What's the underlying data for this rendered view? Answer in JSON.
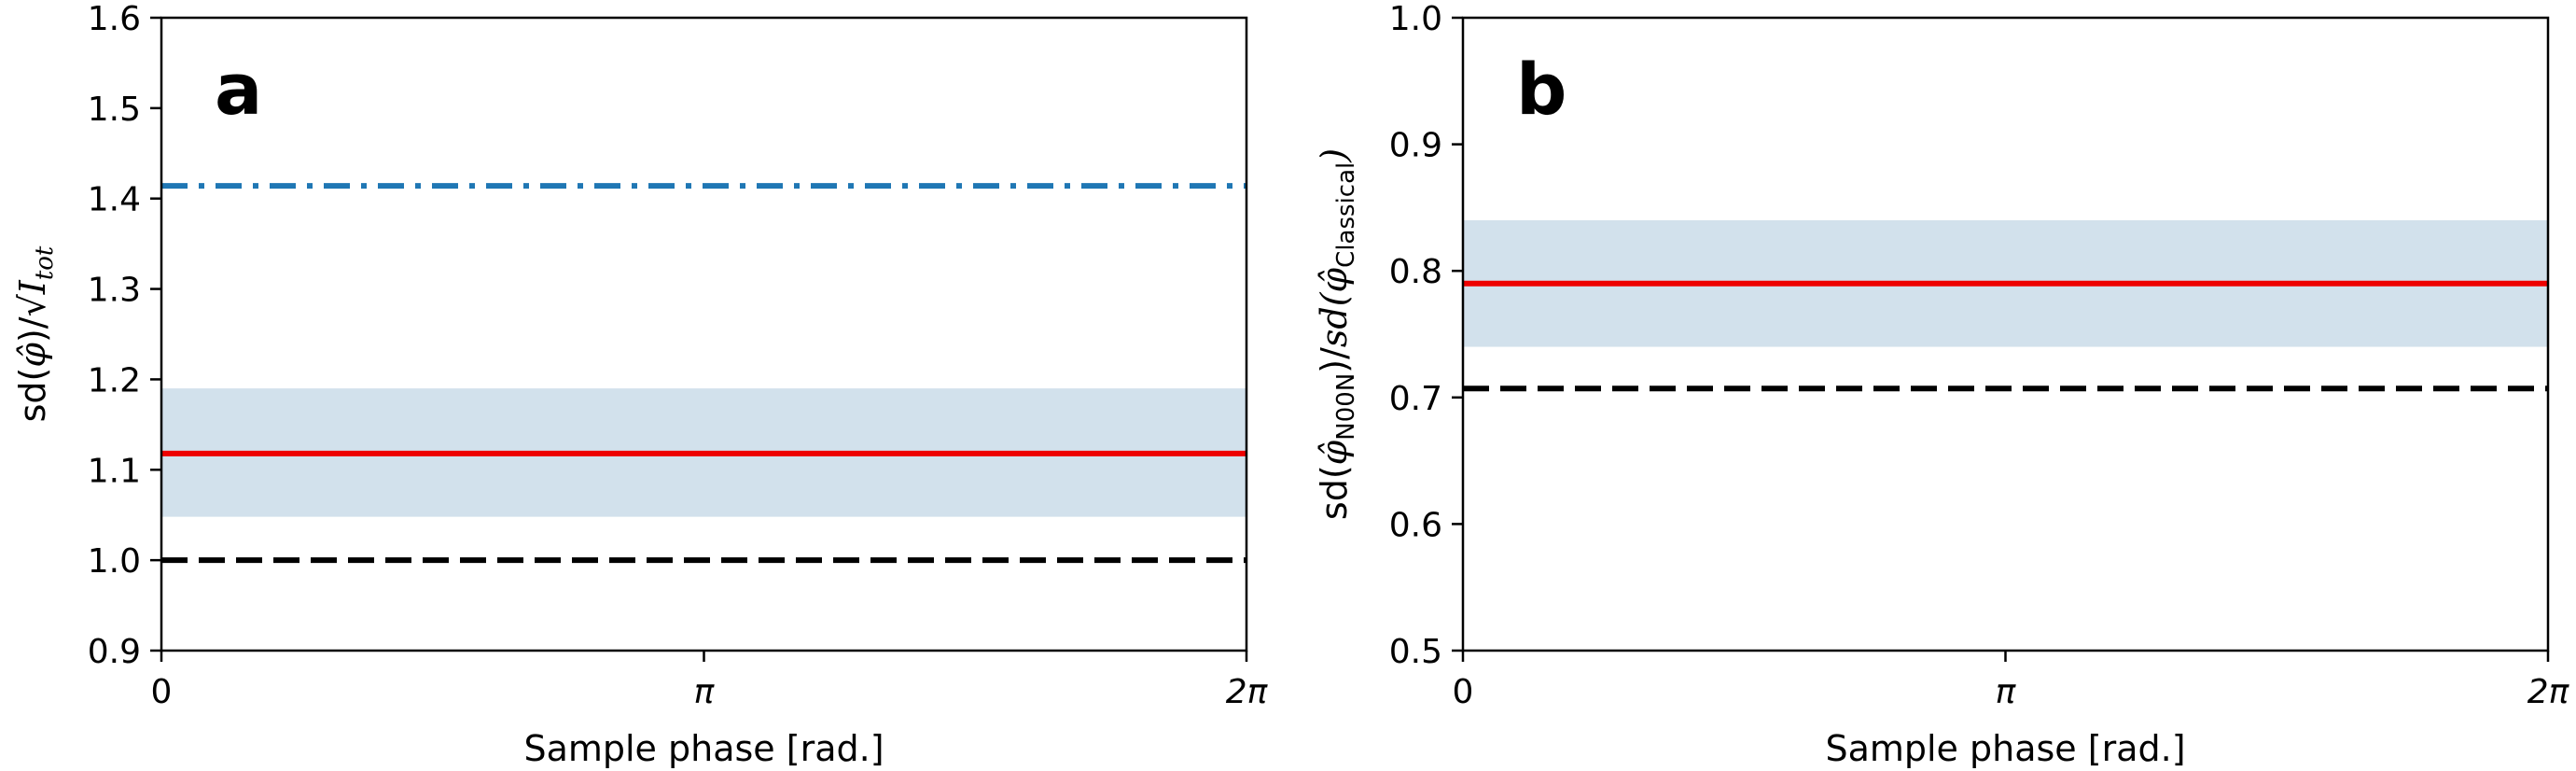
{
  "chart_data": [
    {
      "panel": "a",
      "type": "line",
      "xlabel": "Sample phase [rad.]",
      "ylabel": "sd(φ̂)/√I_tot",
      "ylabel_parts": {
        "pre": "sd(",
        "phi": "φ̂",
        "mid": ")/√",
        "I": "I",
        "sub": "tot"
      },
      "xlim": [
        0,
        6.2832
      ],
      "ylim": [
        0.9,
        1.6
      ],
      "x_tick_values": [
        0,
        3.1416,
        6.2832
      ],
      "x_tick_labels": [
        "0",
        "π",
        "2π"
      ],
      "y_ticks": [
        "0.9",
        "1.0",
        "1.1",
        "1.2",
        "1.3",
        "1.4",
        "1.5",
        "1.6"
      ],
      "grid": false,
      "band": {
        "y_low": 1.048,
        "y_high": 1.19,
        "color": "#d2e1ec"
      },
      "series": [
        {
          "y": 1.414,
          "color": "#1f77b4",
          "style": "dashdot"
        },
        {
          "y": 1.118,
          "color": "#ee0000",
          "style": "solid"
        },
        {
          "y": 1.0,
          "color": "#000000",
          "style": "dashed"
        }
      ]
    },
    {
      "panel": "b",
      "type": "line",
      "xlabel": "Sample phase [rad.]",
      "ylabel": "sd(φ̂_N00N)/sd(φ̂_Classical)",
      "ylabel_parts": {
        "pre": "sd(",
        "phi": "φ̂",
        "sub1": "N00N",
        "mid": ")/",
        "sd": "sd",
        "open": "(",
        "sub2": "Classical",
        "close": ")"
      },
      "xlim": [
        0,
        6.2832
      ],
      "ylim": [
        0.5,
        1.0
      ],
      "x_tick_values": [
        0,
        3.1416,
        6.2832
      ],
      "x_tick_labels": [
        "0",
        "π",
        "2π"
      ],
      "y_ticks": [
        "0.5",
        "0.6",
        "0.7",
        "0.8",
        "0.9",
        "1.0"
      ],
      "grid": false,
      "band": {
        "y_low": 0.74,
        "y_high": 0.84,
        "color": "#d2e1ec"
      },
      "series": [
        {
          "y": 0.79,
          "color": "#ee0000",
          "style": "solid"
        },
        {
          "y": 0.707,
          "color": "#000000",
          "style": "dashed"
        }
      ]
    }
  ]
}
